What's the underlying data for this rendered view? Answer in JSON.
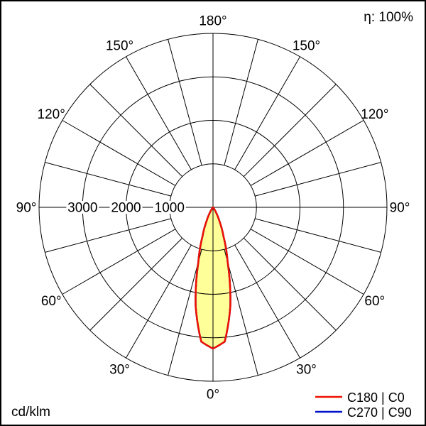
{
  "header": {
    "efficiency_label": "η: 100%"
  },
  "footer": {
    "unit_label": "cd/klm"
  },
  "legend": {
    "items": [
      {
        "label": "C180 | C0",
        "color": "#ee1100"
      },
      {
        "label": "C270 | C90",
        "color": "#0011cc"
      }
    ]
  },
  "chart_data": {
    "type": "polar",
    "unit": "cd/klm",
    "efficiency_percent": 100,
    "grid": {
      "spoke_step_deg": 15,
      "max_radius_value": 4000,
      "line_color": "#000000",
      "radial_ticks": [
        {
          "value": 1000,
          "label": "1000"
        },
        {
          "value": 2000,
          "label": "2000"
        },
        {
          "value": 3000,
          "label": "3000"
        }
      ],
      "angle_labels": [
        {
          "deg": 0,
          "label": "0°"
        },
        {
          "deg": 30,
          "label": "30°"
        },
        {
          "deg": 60,
          "label": "60°"
        },
        {
          "deg": 90,
          "label": "90°"
        },
        {
          "deg": 120,
          "label": "120°"
        },
        {
          "deg": 150,
          "label": "150°"
        },
        {
          "deg": 180,
          "label": "180°"
        }
      ]
    },
    "series": [
      {
        "name": "C180 | C0",
        "color": "#ee1100",
        "fill": "#ffff99",
        "gamma_deg": [
          0,
          5,
          10,
          15,
          20,
          25,
          30,
          35,
          40,
          45,
          50
        ],
        "intensity_cd_klm": [
          3250,
          3100,
          2300,
          1300,
          700,
          350,
          150,
          60,
          20,
          5,
          0
        ]
      },
      {
        "name": "C270 | C90",
        "color": "#0011cc",
        "fill": "#ffff99",
        "gamma_deg": [
          0,
          5,
          10,
          15,
          20,
          25,
          30,
          35,
          40,
          45,
          50
        ],
        "intensity_cd_klm": [
          3250,
          3100,
          2300,
          1300,
          700,
          350,
          150,
          60,
          20,
          5,
          0
        ]
      }
    ]
  }
}
